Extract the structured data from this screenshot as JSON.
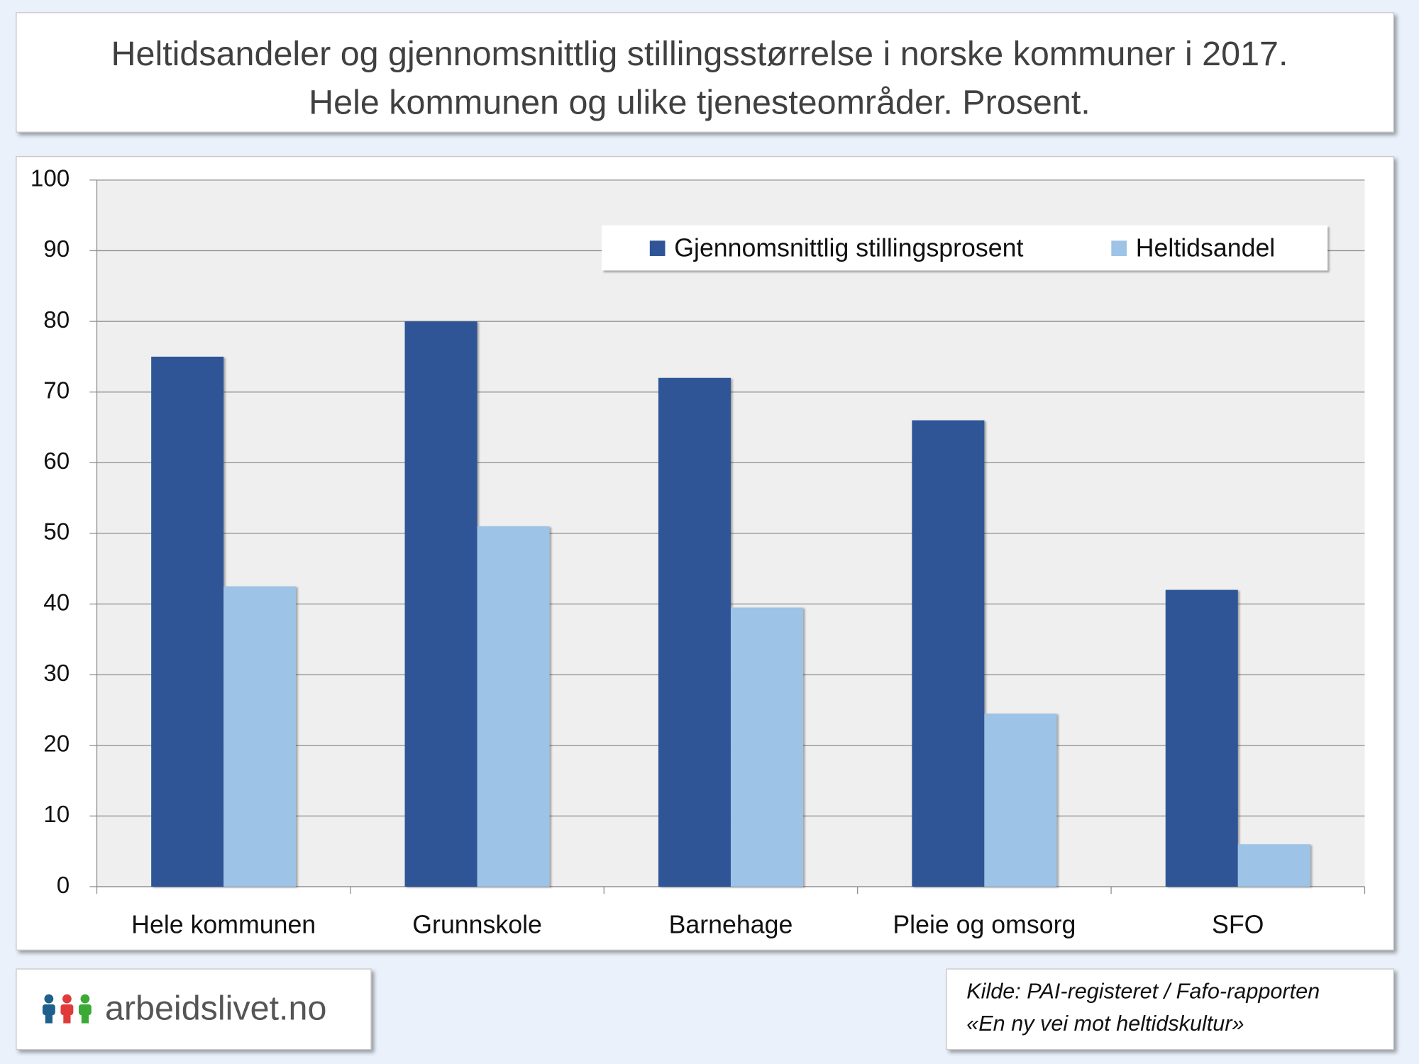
{
  "chart_data": {
    "type": "bar",
    "title": [
      "Heltidsandeler og gjennomsnittlig stillingsstørrelse i norske kommuner i 2017.",
      "Hele kommunen og ulike tjenesteområder. Prosent."
    ],
    "categories": [
      "Hele kommunen",
      "Grunnskole",
      "Barnehage",
      "Pleie og omsorg",
      "SFO"
    ],
    "series": [
      {
        "name": "Gjennomsnittlig stillingsprosent",
        "color": "#2f5597",
        "values": [
          75,
          80,
          72,
          66,
          42
        ]
      },
      {
        "name": "Heltidsandel",
        "color": "#9dc3e6",
        "values": [
          42.5,
          51,
          39.5,
          24.5,
          6
        ]
      }
    ],
    "ylim": [
      0,
      100
    ],
    "yticks": [
      0,
      10,
      20,
      30,
      40,
      50,
      60,
      70,
      80,
      90,
      100
    ],
    "grid": true
  },
  "source": [
    "Kilde: PAI-registeret / Fafo-rapporten",
    "«En ny vei mot heltidskultur»"
  ],
  "logo": "arbeidslivet.no"
}
